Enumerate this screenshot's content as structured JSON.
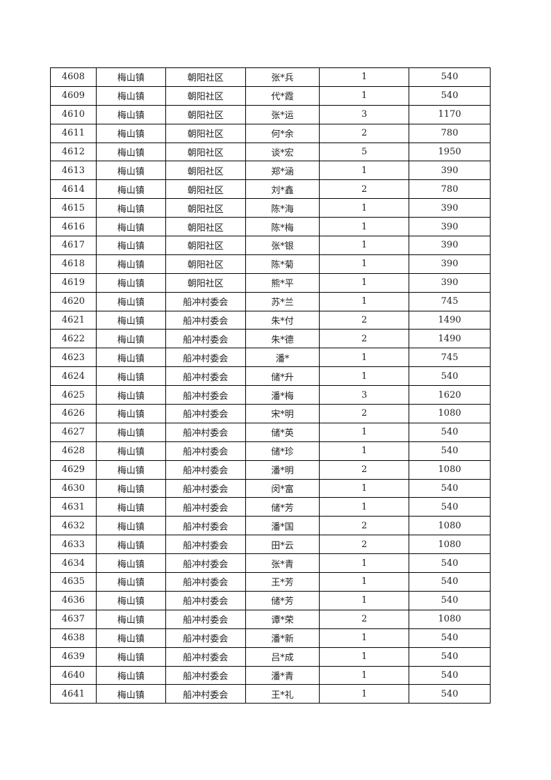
{
  "rows": [
    [
      "4608",
      "梅山镇",
      "朝阳社区",
      "张*兵",
      "1",
      "540"
    ],
    [
      "4609",
      "梅山镇",
      "朝阳社区",
      "代*霞",
      "1",
      "540"
    ],
    [
      "4610",
      "梅山镇",
      "朝阳社区",
      "张*运",
      "3",
      "1170"
    ],
    [
      "4611",
      "梅山镇",
      "朝阳社区",
      "何*余",
      "2",
      "780"
    ],
    [
      "4612",
      "梅山镇",
      "朝阳社区",
      "谈*宏",
      "5",
      "1950"
    ],
    [
      "4613",
      "梅山镇",
      "朝阳社区",
      "郑*涵",
      "1",
      "390"
    ],
    [
      "4614",
      "梅山镇",
      "朝阳社区",
      "刘*鑫",
      "2",
      "780"
    ],
    [
      "4615",
      "梅山镇",
      "朝阳社区",
      "陈*海",
      "1",
      "390"
    ],
    [
      "4616",
      "梅山镇",
      "朝阳社区",
      "陈*梅",
      "1",
      "390"
    ],
    [
      "4617",
      "梅山镇",
      "朝阳社区",
      "张*银",
      "1",
      "390"
    ],
    [
      "4618",
      "梅山镇",
      "朝阳社区",
      "陈*菊",
      "1",
      "390"
    ],
    [
      "4619",
      "梅山镇",
      "朝阳社区",
      "熊*平",
      "1",
      "390"
    ],
    [
      "4620",
      "梅山镇",
      "船冲村委会",
      "苏*兰",
      "1",
      "745"
    ],
    [
      "4621",
      "梅山镇",
      "船冲村委会",
      "朱*付",
      "2",
      "1490"
    ],
    [
      "4622",
      "梅山镇",
      "船冲村委会",
      "朱*德",
      "2",
      "1490"
    ],
    [
      "4623",
      "梅山镇",
      "船冲村委会",
      "潘*",
      "1",
      "745"
    ],
    [
      "4624",
      "梅山镇",
      "船冲村委会",
      "储*升",
      "1",
      "540"
    ],
    [
      "4625",
      "梅山镇",
      "船冲村委会",
      "潘*梅",
      "3",
      "1620"
    ],
    [
      "4626",
      "梅山镇",
      "船冲村委会",
      "宋*明",
      "2",
      "1080"
    ],
    [
      "4627",
      "梅山镇",
      "船冲村委会",
      "储*英",
      "1",
      "540"
    ],
    [
      "4628",
      "梅山镇",
      "船冲村委会",
      "储*珍",
      "1",
      "540"
    ],
    [
      "4629",
      "梅山镇",
      "船冲村委会",
      "潘*明",
      "2",
      "1080"
    ],
    [
      "4630",
      "梅山镇",
      "船冲村委会",
      "闵*富",
      "1",
      "540"
    ],
    [
      "4631",
      "梅山镇",
      "船冲村委会",
      "储*芳",
      "1",
      "540"
    ],
    [
      "4632",
      "梅山镇",
      "船冲村委会",
      "潘*国",
      "2",
      "1080"
    ],
    [
      "4633",
      "梅山镇",
      "船冲村委会",
      "田*云",
      "2",
      "1080"
    ],
    [
      "4634",
      "梅山镇",
      "船冲村委会",
      "张*青",
      "1",
      "540"
    ],
    [
      "4635",
      "梅山镇",
      "船冲村委会",
      "王*芳",
      "1",
      "540"
    ],
    [
      "4636",
      "梅山镇",
      "船冲村委会",
      "储*芳",
      "1",
      "540"
    ],
    [
      "4637",
      "梅山镇",
      "船冲村委会",
      "谭*荣",
      "2",
      "1080"
    ],
    [
      "4638",
      "梅山镇",
      "船冲村委会",
      "潘*新",
      "1",
      "540"
    ],
    [
      "4639",
      "梅山镇",
      "船冲村委会",
      "吕*成",
      "1",
      "540"
    ],
    [
      "4640",
      "梅山镇",
      "船冲村委会",
      "潘*青",
      "1",
      "540"
    ],
    [
      "4641",
      "梅山镇",
      "船冲村委会",
      "王*礼",
      "1",
      "540"
    ]
  ]
}
